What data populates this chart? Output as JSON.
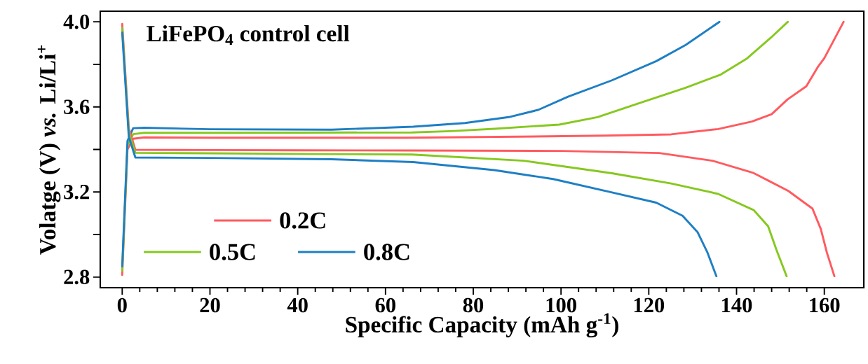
{
  "chart_data": {
    "type": "line",
    "title": "LiFePO$_{4}$ control cell",
    "xlabel": "Specific Capacity (mAh g$^{-1}$)",
    "ylabel": "Volatge (V) *vs.* Li/Li$^{+}$",
    "xlim": [
      -5,
      169
    ],
    "ylim": [
      2.75,
      4.05
    ],
    "xticks": [
      0,
      20,
      40,
      60,
      80,
      100,
      120,
      140,
      160
    ],
    "yticks": [
      2.8,
      {
        "value": 3.0,
        "label": null
      },
      3.2,
      {
        "value": 3.4,
        "label": null
      },
      3.6,
      {
        "value": 3.8,
        "label": null
      },
      {
        "value": 4.0,
        "label": "4.0"
      }
    ],
    "legend": "bottom left",
    "line_style": "solid",
    "series": [
      {
        "name": "0.2C",
        "color": "#ff5a5f",
        "x": [
          0,
          1.2,
          2.5,
          5,
          20,
          40,
          64.7,
          90,
          110,
          125.1,
          135.8,
          143.5,
          148,
          151.6,
          155.9,
          158.5,
          160,
          164.4
        ],
        "values": [
          2.81,
          3.4,
          3.45,
          3.457,
          3.455,
          3.455,
          3.455,
          3.46,
          3.465,
          3.471,
          3.496,
          3.531,
          3.566,
          3.635,
          3.697,
          3.787,
          3.829,
          4.0
        ]
      },
      {
        "name": "0.5C",
        "color": "#86c81f",
        "x": [
          0,
          1.2,
          2.5,
          5,
          20,
          40,
          66,
          74.8,
          84.8,
          99.6,
          108.3,
          118.3,
          128.4,
          136.4,
          142.4,
          147.8,
          151.7
        ],
        "values": [
          2.83,
          3.42,
          3.472,
          3.478,
          3.478,
          3.479,
          3.48,
          3.486,
          3.497,
          3.517,
          3.552,
          3.621,
          3.69,
          3.752,
          3.828,
          3.925,
          4.0
        ]
      },
      {
        "name": "0.8C",
        "color": "#1e7fc4",
        "x": [
          0,
          1.2,
          2.5,
          5,
          20,
          47.7,
          66.3,
          78.1,
          88.1,
          94.8,
          101.6,
          111.6,
          121.7,
          128.4,
          136.1
        ],
        "values": [
          2.85,
          3.44,
          3.5,
          3.502,
          3.495,
          3.493,
          3.507,
          3.524,
          3.552,
          3.586,
          3.648,
          3.725,
          3.815,
          3.891,
          4.0
        ]
      },
      {
        "color": "#ff5a5f",
        "x": [
          0,
          1.5,
          3,
          20,
          40,
          66,
          100,
          122.4,
          134.5,
          143.9,
          147.2,
          151.8,
          157.3,
          159.2,
          160.6,
          162.3
        ],
        "values": [
          3.99,
          3.5,
          3.398,
          3.397,
          3.396,
          3.395,
          3.393,
          3.383,
          3.347,
          3.289,
          3.254,
          3.205,
          3.122,
          3.026,
          2.914,
          2.804
        ]
      },
      {
        "color": "#86c81f",
        "x": [
          0,
          1.5,
          3,
          20,
          40,
          66,
          91.5,
          111.6,
          125.1,
          135.8,
          143.9,
          147.2,
          149.1,
          151.4
        ],
        "values": [
          3.97,
          3.48,
          3.384,
          3.382,
          3.379,
          3.376,
          3.347,
          3.288,
          3.24,
          3.191,
          3.115,
          3.039,
          2.928,
          2.804
        ]
      },
      {
        "color": "#1e7fc4",
        "x": [
          0,
          1.5,
          3,
          20,
          47.7,
          66.3,
          84.8,
          98.2,
          111.6,
          121.7,
          127.7,
          131.1,
          133.4,
          135.4
        ],
        "values": [
          3.95,
          3.46,
          3.362,
          3.36,
          3.354,
          3.341,
          3.303,
          3.261,
          3.198,
          3.15,
          3.088,
          3.012,
          2.914,
          2.804
        ]
      }
    ]
  }
}
